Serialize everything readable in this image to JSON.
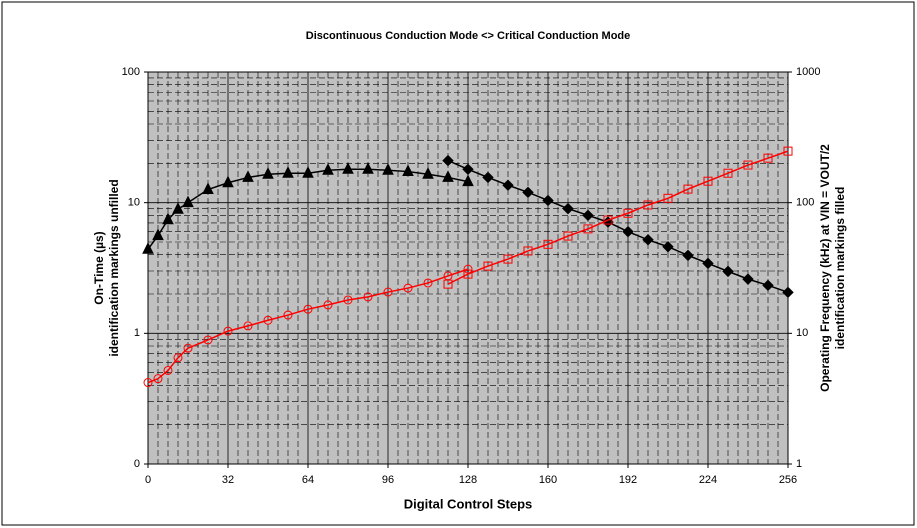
{
  "chart_data": {
    "type": "line",
    "title": "Discontinuous Conduction Mode <> Critical Conduction Mode",
    "xlabel": "Digital Control Steps",
    "ylabel": [
      "On-Time (µs)",
      "identification markings unfilled"
    ],
    "y2label": [
      "Operating Frequency (kHz) at VIN = VOUT/2",
      "identification markings filled"
    ],
    "xlim": [
      0,
      256
    ],
    "xticks": [
      0,
      32,
      64,
      96,
      128,
      160,
      192,
      224,
      256
    ],
    "ylim": [
      0.1,
      100
    ],
    "yticks": [
      {
        "value": 0.1,
        "label": "0"
      },
      1,
      10,
      100
    ],
    "y2lim": [
      1,
      1000
    ],
    "y2ticks": [
      1,
      10,
      100,
      1000
    ],
    "ylog": true,
    "y2log": true,
    "grid": true,
    "series": [
      {
        "color": "#000000",
        "marker": "triangle",
        "filled": true,
        "x": [
          0,
          4,
          8,
          12,
          16,
          24,
          32,
          40,
          48,
          56,
          64,
          72,
          80,
          88,
          96,
          104,
          112,
          120,
          128
        ],
        "values": [
          4.4,
          5.6,
          7.4,
          8.9,
          10,
          12.6,
          14.2,
          15.6,
          16.5,
          16.8,
          16.8,
          17.7,
          18,
          18,
          17.7,
          17.3,
          16.5,
          15.6,
          14.5
        ]
      },
      {
        "color": "#000000",
        "marker": "diamond",
        "filled": true,
        "x": [
          120,
          128,
          136,
          144,
          152,
          160,
          168,
          176,
          184,
          192,
          200,
          208,
          216,
          224,
          232,
          240,
          248,
          256
        ],
        "values": [
          21,
          18,
          15.6,
          13.6,
          12,
          10.4,
          9,
          8,
          7.1,
          6,
          5.2,
          4.6,
          3.95,
          3.43,
          2.98,
          2.6,
          2.33,
          2.06
        ]
      },
      {
        "color": "#ff0000",
        "marker": "circle",
        "filled": false,
        "axis": "y2",
        "x": [
          0,
          4,
          8,
          12,
          16,
          24,
          32,
          40,
          48,
          56,
          64,
          72,
          80,
          88,
          96,
          104,
          112,
          120,
          128
        ],
        "values": [
          4.2,
          4.5,
          5.2,
          6.5,
          7.7,
          8.9,
          10.4,
          11.4,
          12.6,
          13.8,
          15.3,
          16.5,
          18,
          19,
          20.7,
          22.2,
          24.3,
          27.5,
          31
        ]
      },
      {
        "color": "#ff0000",
        "marker": "square",
        "filled": false,
        "axis": "y2",
        "x": [
          120,
          128,
          136,
          144,
          152,
          160,
          168,
          176,
          184,
          192,
          200,
          208,
          216,
          224,
          232,
          240,
          248,
          256
        ],
        "values": [
          23.8,
          28.4,
          32.7,
          37,
          42.7,
          48,
          55.5,
          63,
          73.6,
          83,
          96,
          108,
          127,
          146,
          168,
          194,
          219,
          248
        ]
      }
    ]
  }
}
